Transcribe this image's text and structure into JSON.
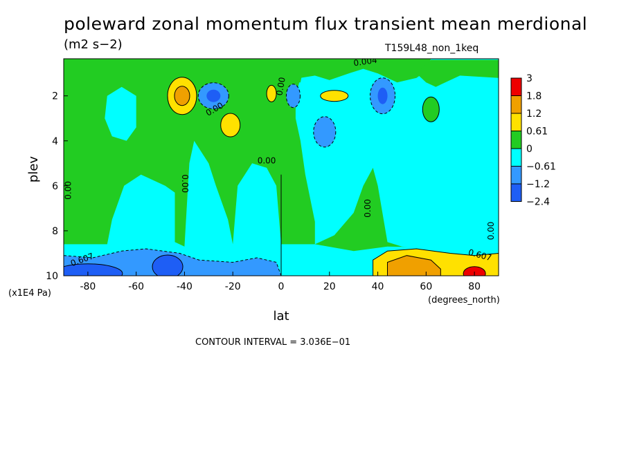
{
  "title": "poleward zonal momentum flux transient mean merdional",
  "units": "(m2 s−2)",
  "run_name": "T159L48_non_1keq",
  "contour_interval": "CONTOUR INTERVAL = 3.036E−01",
  "colors": {
    "red": "#ee0000",
    "orange": "#f0a000",
    "yellow": "#ffe100",
    "green": "#22cc22",
    "cyan": "#00ffff",
    "lightblue": "#3399ff",
    "blue": "#1e5ef5"
  },
  "chart_data": {
    "type": "heatmap",
    "subtype": "filled-contour",
    "x_field": "lat",
    "y_field": "plev",
    "xlabel": "lat",
    "x_unit_label": "(degrees_north)",
    "ylabel": "plev",
    "y_unit_label": "(x1E4 Pa)",
    "xlim": [
      -90,
      90
    ],
    "ylim": [
      10,
      0.35
    ],
    "x_ticks": [
      "-80",
      "-60",
      "-40",
      "-20",
      "0",
      "20",
      "40",
      "60",
      "80"
    ],
    "x_tick_values": [
      -80,
      -60,
      -40,
      -20,
      0,
      20,
      40,
      60,
      80
    ],
    "y_ticks": [
      "2",
      "4",
      "6",
      "8",
      "10"
    ],
    "y_tick_values": [
      2,
      4,
      6,
      8,
      10
    ],
    "colorbar": {
      "labels": [
        "3",
        "1.8",
        "1.2",
        "0.61",
        "0",
        "−0.61",
        "−1.2",
        "−2.4"
      ],
      "levels": [
        3,
        1.8,
        1.2,
        0.61,
        0,
        -0.61,
        -1.2,
        -2.4
      ],
      "colors": [
        "#ee0000",
        "#f0a000",
        "#ffe100",
        "#22cc22",
        "#00ffff",
        "#3399ff",
        "#1e5ef5"
      ]
    },
    "contour_labels": [
      {
        "text": "0.00",
        "lat": -87,
        "plev": 6.2,
        "rotate": -90
      },
      {
        "text": "0.00",
        "lat": -41,
        "plev": 5.9,
        "rotate": 90
      },
      {
        "text": "0.00",
        "lat": -27,
        "plev": 2.7,
        "rotate": -30
      },
      {
        "text": "0.00",
        "lat": -6,
        "plev": 5.0,
        "rotate": 0
      },
      {
        "text": "0.00",
        "lat": 1,
        "plev": 1.6,
        "rotate": -80
      },
      {
        "text": "0.00",
        "lat": 37,
        "plev": 7.0,
        "rotate": -90
      },
      {
        "text": "0.00",
        "lat": 88,
        "plev": 8.0,
        "rotate": -90
      },
      {
        "text": "0.004",
        "lat": 35,
        "plev": 0.6,
        "rotate": -8
      },
      {
        "text": "0.607",
        "lat": -82,
        "plev": 9.4,
        "rotate": -20
      },
      {
        "text": "0.607",
        "lat": 82,
        "plev": 9.2,
        "rotate": 15
      }
    ],
    "features": [
      {
        "sign": "positive",
        "lat": -41,
        "plev": 2.0,
        "peak_level": 1.8
      },
      {
        "sign": "positive",
        "lat": -21,
        "plev": 3.3,
        "peak_level": 0.61
      },
      {
        "sign": "positive",
        "lat": -4,
        "plev": 1.9,
        "peak_level": 0.61
      },
      {
        "sign": "positive",
        "lat": 22,
        "plev": 2.0,
        "peak_level": 0.61
      },
      {
        "sign": "positive",
        "lat": 55,
        "plev": 9.5,
        "peak_level": 1.2
      },
      {
        "sign": "positive",
        "lat": 80,
        "plev": 9.8,
        "peak_level": 3
      },
      {
        "sign": "negative",
        "lat": -28,
        "plev": 2.0,
        "peak_level": -1.2
      },
      {
        "sign": "negative",
        "lat": 5,
        "plev": 2.0,
        "peak_level": -0.61
      },
      {
        "sign": "negative",
        "lat": 18,
        "plev": 3.6,
        "peak_level": -0.61
      },
      {
        "sign": "negative",
        "lat": 42,
        "plev": 2.0,
        "peak_level": -1.2
      },
      {
        "sign": "negative",
        "lat": -80,
        "plev": 9.6,
        "peak_level": -2.4
      },
      {
        "sign": "negative",
        "lat": -47,
        "plev": 9.6,
        "peak_level": -2.4
      }
    ]
  }
}
